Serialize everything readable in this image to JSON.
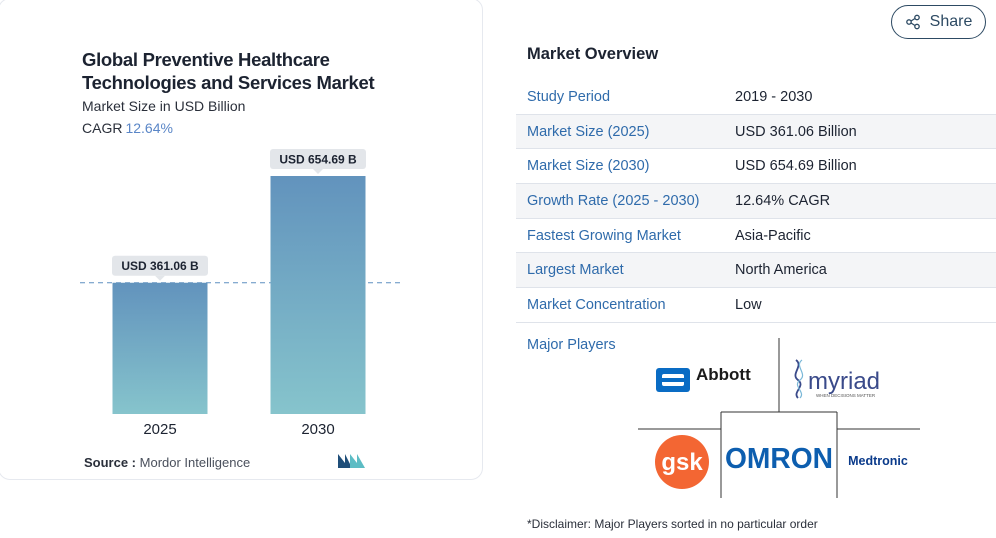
{
  "chart": {
    "title": "Global Preventive Healthcare Technologies and Services Market",
    "subtitle": "Market Size in USD Billion",
    "cagr_label": "CAGR",
    "cagr_value": "12.64%",
    "source_label": "Source :",
    "source_value": "Mordor Intelligence"
  },
  "chart_data": {
    "type": "bar",
    "categories": [
      "2025",
      "2030"
    ],
    "values": [
      361.06,
      654.69
    ],
    "data_labels": [
      "USD 361.06 B",
      "USD 654.69 B"
    ],
    "title": "Global Preventive Healthcare Technologies and Services Market",
    "ylabel": "Market Size in USD Billion",
    "ylim": [
      0,
      654.69
    ],
    "colors": {
      "bar_top": "#6293bd",
      "bar_bottom": "#86c4cc",
      "guide": "#5e8fc0"
    }
  },
  "share": {
    "label": "Share"
  },
  "overview": {
    "title": "Market Overview",
    "rows": [
      {
        "key": "Study Period",
        "value": "2019 - 2030"
      },
      {
        "key": "Market Size (2025)",
        "value": "USD 361.06 Billion"
      },
      {
        "key": "Market Size (2030)",
        "value": "USD 654.69 Billion"
      },
      {
        "key": "Growth Rate (2025 - 2030)",
        "value": "12.64% CAGR"
      },
      {
        "key": "Fastest Growing Market",
        "value": "Asia-Pacific"
      },
      {
        "key": "Largest Market",
        "value": "North America"
      },
      {
        "key": "Market Concentration",
        "value": "Low"
      }
    ],
    "players_label": "Major Players",
    "players": [
      "Abbott",
      "myriad",
      "gsk",
      "OMRON",
      "Medtronic"
    ],
    "myriad_tagline": "WHEN DECISIONS MATTER",
    "disclaimer": "*Disclaimer: Major Players sorted in no particular order"
  },
  "colors": {
    "link": "#2f6bab",
    "accent": "#5a86c7",
    "abbott": "#0a6cc4",
    "gsk": "#f36633",
    "omron": "#0d5eaf",
    "medtronic": "#0a3a8a"
  }
}
